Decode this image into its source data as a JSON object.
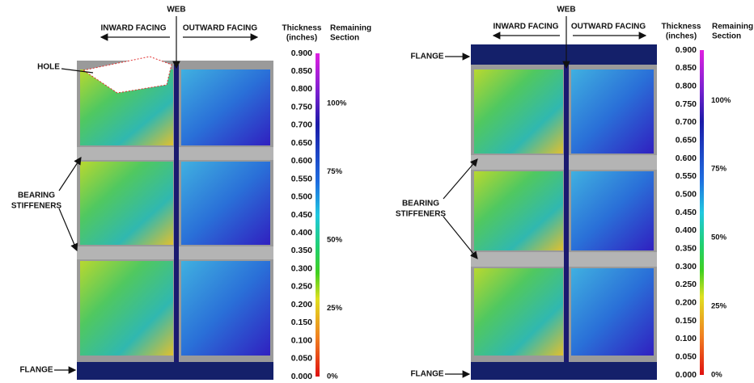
{
  "panels": [
    {
      "web": "WEB",
      "inward": "INWARD FACING",
      "outward": "OUTWARD FACING",
      "hole": "HOLE",
      "stiffeners": [
        "BEARING",
        "STIFFENERS"
      ],
      "flange_bottom": "FLANGE",
      "thickness_header": [
        "Thickness",
        "(inches)"
      ],
      "remaining_header": [
        "Remaining",
        "Section"
      ],
      "thickness_ticks": [
        "0.900",
        "0.850",
        "0.800",
        "0.750",
        "0.700",
        "0.650",
        "0.600",
        "0.550",
        "0.500",
        "0.450",
        "0.400",
        "0.350",
        "0.300",
        "0.250",
        "0.200",
        "0.150",
        "0.100",
        "0.050",
        "0.000"
      ],
      "remaining_ticks": [
        "100%",
        "75%",
        "50%",
        "25%",
        "0%"
      ]
    },
    {
      "web": "WEB",
      "inward": "INWARD FACING",
      "outward": "OUTWARD FACING",
      "flange_top": "FLANGE",
      "stiffeners": [
        "BEARING",
        "STIFFENERS"
      ],
      "flange_bottom": "FLANGE",
      "thickness_header": [
        "Thickness",
        "(inches)"
      ],
      "remaining_header": [
        "Remaining",
        "Section"
      ],
      "thickness_ticks": [
        "0.900",
        "0.850",
        "0.800",
        "0.750",
        "0.700",
        "0.650",
        "0.600",
        "0.550",
        "0.500",
        "0.450",
        "0.400",
        "0.350",
        "0.300",
        "0.250",
        "0.200",
        "0.150",
        "0.100",
        "0.050",
        "0.000"
      ],
      "remaining_ticks": [
        "100%",
        "75%",
        "50%",
        "25%",
        "0%"
      ]
    }
  ]
}
